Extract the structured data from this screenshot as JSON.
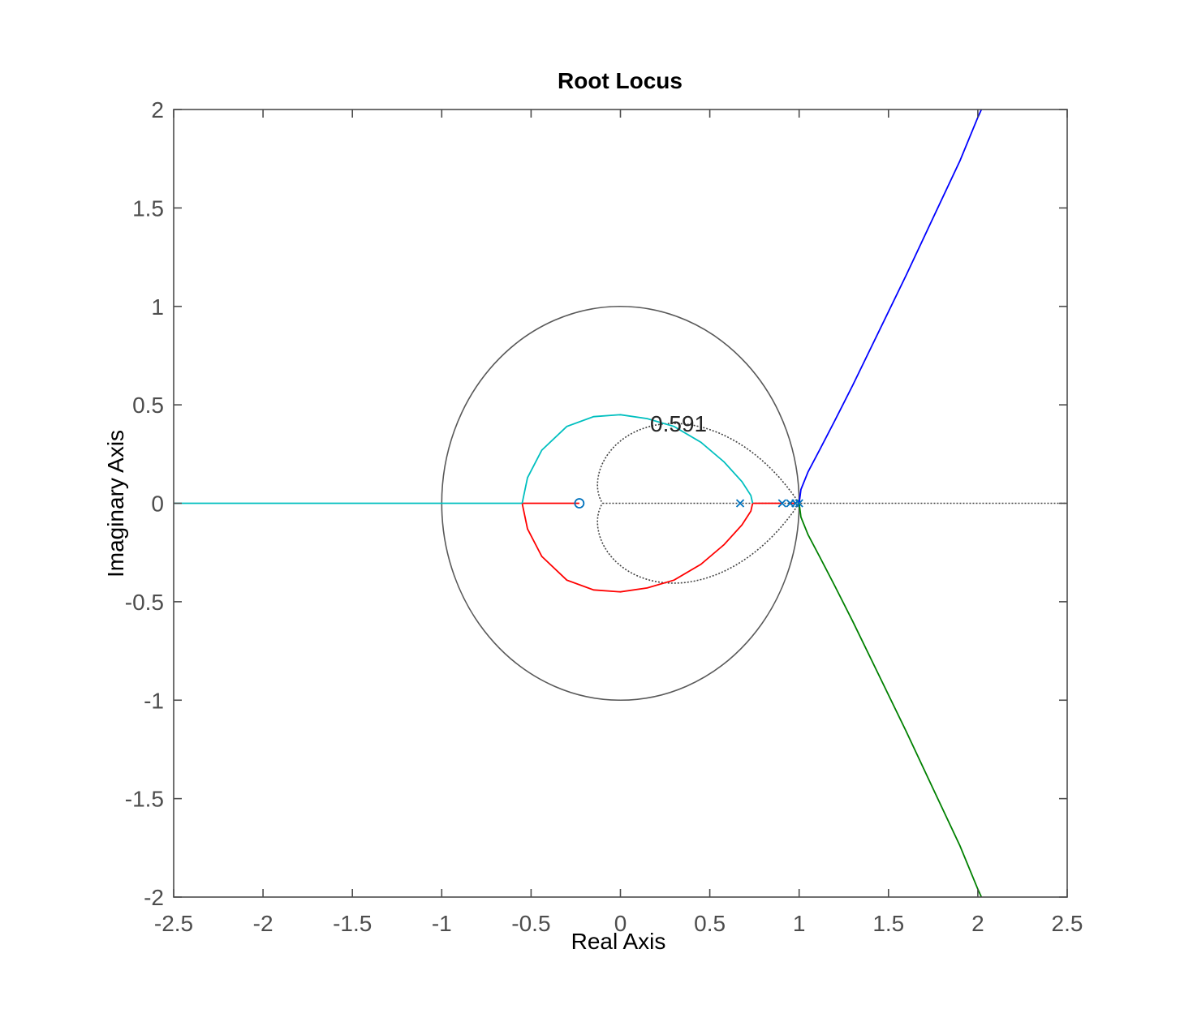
{
  "chart_data": {
    "type": "line",
    "title": "Root Locus",
    "xlabel": "Real Axis",
    "ylabel": "Imaginary Axis",
    "xlim": [
      -2.5,
      2.5
    ],
    "ylim": [
      -2,
      2
    ],
    "grid": false,
    "xticks": [
      -2.5,
      -2,
      -1.5,
      -1,
      -0.5,
      0,
      0.5,
      1,
      1.5,
      2,
      2.5
    ],
    "xtick_labels": [
      "-2.5",
      "-2",
      "-1.5",
      "-1",
      "-0.5",
      "0",
      "0.5",
      "1",
      "1.5",
      "2",
      "2.5"
    ],
    "yticks": [
      -2,
      -1.5,
      -1,
      -0.5,
      0,
      0.5,
      1,
      1.5,
      2
    ],
    "ytick_labels": [
      "-2",
      "-1.5",
      "-1",
      "-0.5",
      "0",
      "0.5",
      "1",
      "1.5",
      "2"
    ],
    "colors": {
      "branch_blue": "#0000ff",
      "branch_green": "#008000",
      "branch_red": "#ff0000",
      "branch_cyan": "#00bfbf",
      "poles_zeros": "#0072bd",
      "unit_circle": "#595959",
      "damping_curve": "#444444",
      "axes": "#4d4d4d"
    },
    "poles": [
      {
        "x": 0.67,
        "y": 0
      },
      {
        "x": 0.905,
        "y": 0
      },
      {
        "x": 0.95,
        "y": 0
      },
      {
        "x": 0.98,
        "y": 0
      },
      {
        "x": 1.0,
        "y": 0
      }
    ],
    "zeros": [
      {
        "x": -0.23,
        "y": 0
      }
    ],
    "annotations": [
      {
        "text": "0.591",
        "x": 0.325,
        "y": 0.405
      }
    ],
    "series": [
      {
        "color": "#0000ff",
        "points": [
          [
            1.0,
            0.0
          ],
          [
            1.01,
            0.07
          ],
          [
            1.05,
            0.16
          ],
          [
            1.12,
            0.28
          ],
          [
            1.2,
            0.42
          ],
          [
            1.3,
            0.6
          ],
          [
            1.45,
            0.88
          ],
          [
            1.6,
            1.16
          ],
          [
            1.75,
            1.45
          ],
          [
            1.9,
            1.74
          ],
          [
            2.0,
            1.96
          ],
          [
            2.02,
            2.0
          ]
        ]
      },
      {
        "color": "#008000",
        "points": [
          [
            1.0,
            0.0
          ],
          [
            1.01,
            -0.07
          ],
          [
            1.05,
            -0.16
          ],
          [
            1.12,
            -0.28
          ],
          [
            1.2,
            -0.42
          ],
          [
            1.3,
            -0.6
          ],
          [
            1.45,
            -0.88
          ],
          [
            1.6,
            -1.16
          ],
          [
            1.75,
            -1.45
          ],
          [
            1.9,
            -1.74
          ],
          [
            2.0,
            -1.96
          ],
          [
            2.02,
            -2.0
          ]
        ]
      },
      {
        "color": "#ff0000",
        "points": [
          [
            -0.55,
            0.0
          ],
          [
            -0.23,
            0.0
          ]
        ]
      },
      {
        "color": "#ff0000",
        "points": [
          [
            0.74,
            0.0
          ],
          [
            0.905,
            0.0
          ]
        ]
      },
      {
        "color": "#ff0000",
        "points": [
          [
            0.955,
            0.0
          ],
          [
            0.985,
            0.0
          ]
        ]
      },
      {
        "color": "#ff0000",
        "points": [
          [
            -0.55,
            0.0
          ],
          [
            -0.52,
            -0.13
          ],
          [
            -0.44,
            -0.27
          ],
          [
            -0.3,
            -0.39
          ],
          [
            -0.15,
            -0.44
          ],
          [
            0.0,
            -0.45
          ],
          [
            0.15,
            -0.43
          ],
          [
            0.3,
            -0.39
          ],
          [
            0.45,
            -0.31
          ],
          [
            0.58,
            -0.21
          ],
          [
            0.68,
            -0.11
          ],
          [
            0.73,
            -0.04
          ],
          [
            0.74,
            0.0
          ]
        ]
      },
      {
        "color": "#00bfbf",
        "points": [
          [
            -0.55,
            0.0
          ],
          [
            -0.52,
            0.13
          ],
          [
            -0.44,
            0.27
          ],
          [
            -0.3,
            0.39
          ],
          [
            -0.15,
            0.44
          ],
          [
            0.0,
            0.45
          ],
          [
            0.15,
            0.43
          ],
          [
            0.3,
            0.39
          ],
          [
            0.45,
            0.31
          ],
          [
            0.58,
            0.21
          ],
          [
            0.68,
            0.11
          ],
          [
            0.73,
            0.04
          ],
          [
            0.74,
            0.0
          ]
        ]
      },
      {
        "color": "#00bfbf",
        "points": [
          [
            -2.5,
            0.0
          ],
          [
            -0.55,
            0.0
          ]
        ]
      }
    ]
  }
}
